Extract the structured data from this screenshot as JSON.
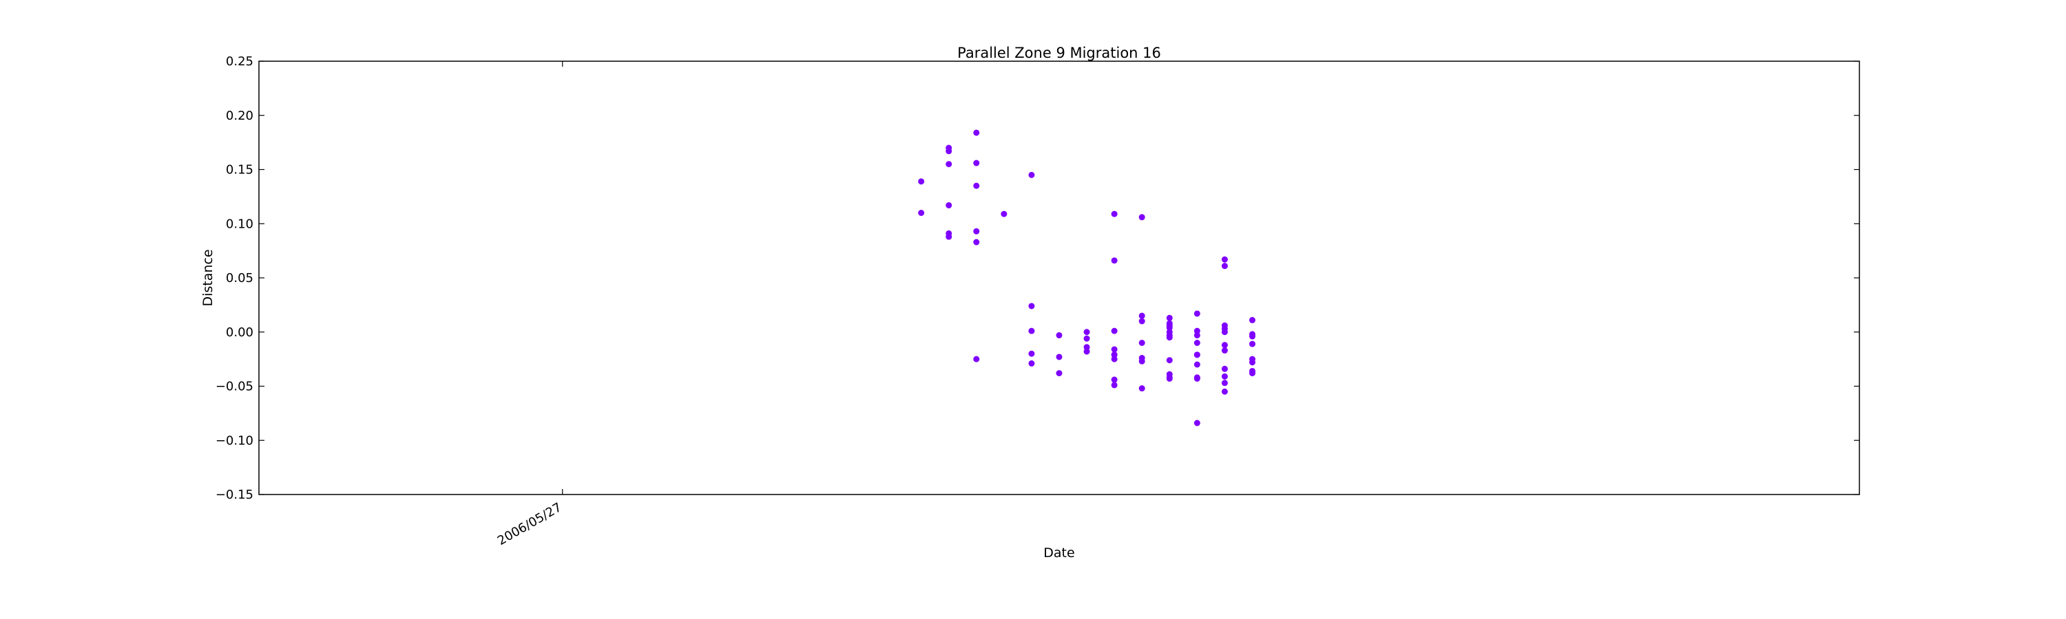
{
  "chart_data": {
    "type": "scatter",
    "title": "Parallel Zone 9 Migration 16",
    "xlabel": "Date",
    "ylabel": "Distance",
    "x_axis_kind": "date",
    "x_tick_labels": [
      "2006/05/27"
    ],
    "y_ticks": [
      0.25,
      0.2,
      0.15,
      0.1,
      0.05,
      0.0,
      -0.05,
      -0.1,
      -0.15
    ],
    "y_tick_labels": [
      "0.25",
      "0.20",
      "0.15",
      "0.10",
      "0.05",
      "0.00",
      "−0.05",
      "−0.10",
      "−0.15"
    ],
    "ylim": [
      -0.15,
      0.25
    ],
    "xlim": [
      "2006/05/16",
      "2006/07/13"
    ],
    "grid": false,
    "marker_color": "#7f00ff",
    "series": [
      {
        "points": [
          {
            "x": "2006/06/09",
            "y": 0.11
          },
          {
            "x": "2006/06/09",
            "y": 0.139
          },
          {
            "x": "2006/06/10",
            "y": 0.17
          },
          {
            "x": "2006/06/10",
            "y": 0.091
          },
          {
            "x": "2006/06/10",
            "y": 0.167
          },
          {
            "x": "2006/06/10",
            "y": 0.155
          },
          {
            "x": "2006/06/10",
            "y": 0.117
          },
          {
            "x": "2006/06/10",
            "y": 0.088
          },
          {
            "x": "2006/06/11",
            "y": 0.093
          },
          {
            "x": "2006/06/11",
            "y": -0.025
          },
          {
            "x": "2006/06/11",
            "y": 0.184
          },
          {
            "x": "2006/06/11",
            "y": 0.156
          },
          {
            "x": "2006/06/11",
            "y": 0.135
          },
          {
            "x": "2006/06/11",
            "y": 0.083
          },
          {
            "x": "2006/06/12",
            "y": 0.109
          },
          {
            "x": "2006/06/13",
            "y": 0.145
          },
          {
            "x": "2006/06/13",
            "y": 0.024
          },
          {
            "x": "2006/06/13",
            "y": 0.001
          },
          {
            "x": "2006/06/13",
            "y": -0.02
          },
          {
            "x": "2006/06/13",
            "y": -0.029
          },
          {
            "x": "2006/06/14",
            "y": -0.003
          },
          {
            "x": "2006/06/14",
            "y": -0.038
          },
          {
            "x": "2006/06/14",
            "y": -0.023
          },
          {
            "x": "2006/06/15",
            "y": -0.006
          },
          {
            "x": "2006/06/15",
            "y": -0.014
          },
          {
            "x": "2006/06/15",
            "y": -0.018
          },
          {
            "x": "2006/06/15",
            "y": 0.0
          },
          {
            "x": "2006/06/16",
            "y": -0.025
          },
          {
            "x": "2006/06/16",
            "y": -0.021
          },
          {
            "x": "2006/06/16",
            "y": 0.001
          },
          {
            "x": "2006/06/16",
            "y": -0.044
          },
          {
            "x": "2006/06/16",
            "y": -0.021
          },
          {
            "x": "2006/06/16",
            "y": -0.049
          },
          {
            "x": "2006/06/16",
            "y": -0.016
          },
          {
            "x": "2006/06/16",
            "y": 0.066
          },
          {
            "x": "2006/06/16",
            "y": 0.109
          },
          {
            "x": "2006/06/17",
            "y": 0.106
          },
          {
            "x": "2006/06/17",
            "y": -0.024
          },
          {
            "x": "2006/06/17",
            "y": -0.052
          },
          {
            "x": "2006/06/17",
            "y": -0.01
          },
          {
            "x": "2006/06/17",
            "y": -0.027
          },
          {
            "x": "2006/06/17",
            "y": 0.015
          },
          {
            "x": "2006/06/17",
            "y": 0.01
          },
          {
            "x": "2006/06/18",
            "y": 0.013
          },
          {
            "x": "2006/06/18",
            "y": 0.004
          },
          {
            "x": "2006/06/18",
            "y": 0.0
          },
          {
            "x": "2006/06/18",
            "y": -0.003
          },
          {
            "x": "2006/06/18",
            "y": -0.026
          },
          {
            "x": "2006/06/18",
            "y": -0.042
          },
          {
            "x": "2006/06/18",
            "y": 0.008
          },
          {
            "x": "2006/06/18",
            "y": -0.005
          },
          {
            "x": "2006/06/18",
            "y": -0.039
          },
          {
            "x": "2006/06/18",
            "y": -0.043
          },
          {
            "x": "2006/06/18",
            "y": 0.006
          },
          {
            "x": "2006/06/19",
            "y": -0.01
          },
          {
            "x": "2006/06/19",
            "y": 0.001
          },
          {
            "x": "2006/06/19",
            "y": -0.003
          },
          {
            "x": "2006/06/19",
            "y": -0.03
          },
          {
            "x": "2006/06/19",
            "y": -0.084
          },
          {
            "x": "2006/06/19",
            "y": -0.021
          },
          {
            "x": "2006/06/19",
            "y": -0.042
          },
          {
            "x": "2006/06/19",
            "y": 0.017
          },
          {
            "x": "2006/06/19",
            "y": -0.043
          },
          {
            "x": "2006/06/19",
            "y": -0.021
          },
          {
            "x": "2006/06/20",
            "y": 0.006
          },
          {
            "x": "2006/06/20",
            "y": -0.041
          },
          {
            "x": "2006/06/20",
            "y": -0.047
          },
          {
            "x": "2006/06/20",
            "y": -0.055
          },
          {
            "x": "2006/06/20",
            "y": -0.017
          },
          {
            "x": "2006/06/20",
            "y": 0.003
          },
          {
            "x": "2006/06/20",
            "y": 0.0
          },
          {
            "x": "2006/06/20",
            "y": 0.067
          },
          {
            "x": "2006/06/20",
            "y": 0.061
          },
          {
            "x": "2006/06/20",
            "y": -0.012
          },
          {
            "x": "2006/06/20",
            "y": -0.034
          },
          {
            "x": "2006/06/21",
            "y": 0.011
          },
          {
            "x": "2006/06/21",
            "y": -0.025
          },
          {
            "x": "2006/06/21",
            "y": -0.028
          },
          {
            "x": "2006/06/21",
            "y": -0.038
          },
          {
            "x": "2006/06/21",
            "y": -0.036
          },
          {
            "x": "2006/06/21",
            "y": -0.002
          },
          {
            "x": "2006/06/21",
            "y": -0.004
          },
          {
            "x": "2006/06/21",
            "y": -0.011
          }
        ]
      }
    ]
  }
}
